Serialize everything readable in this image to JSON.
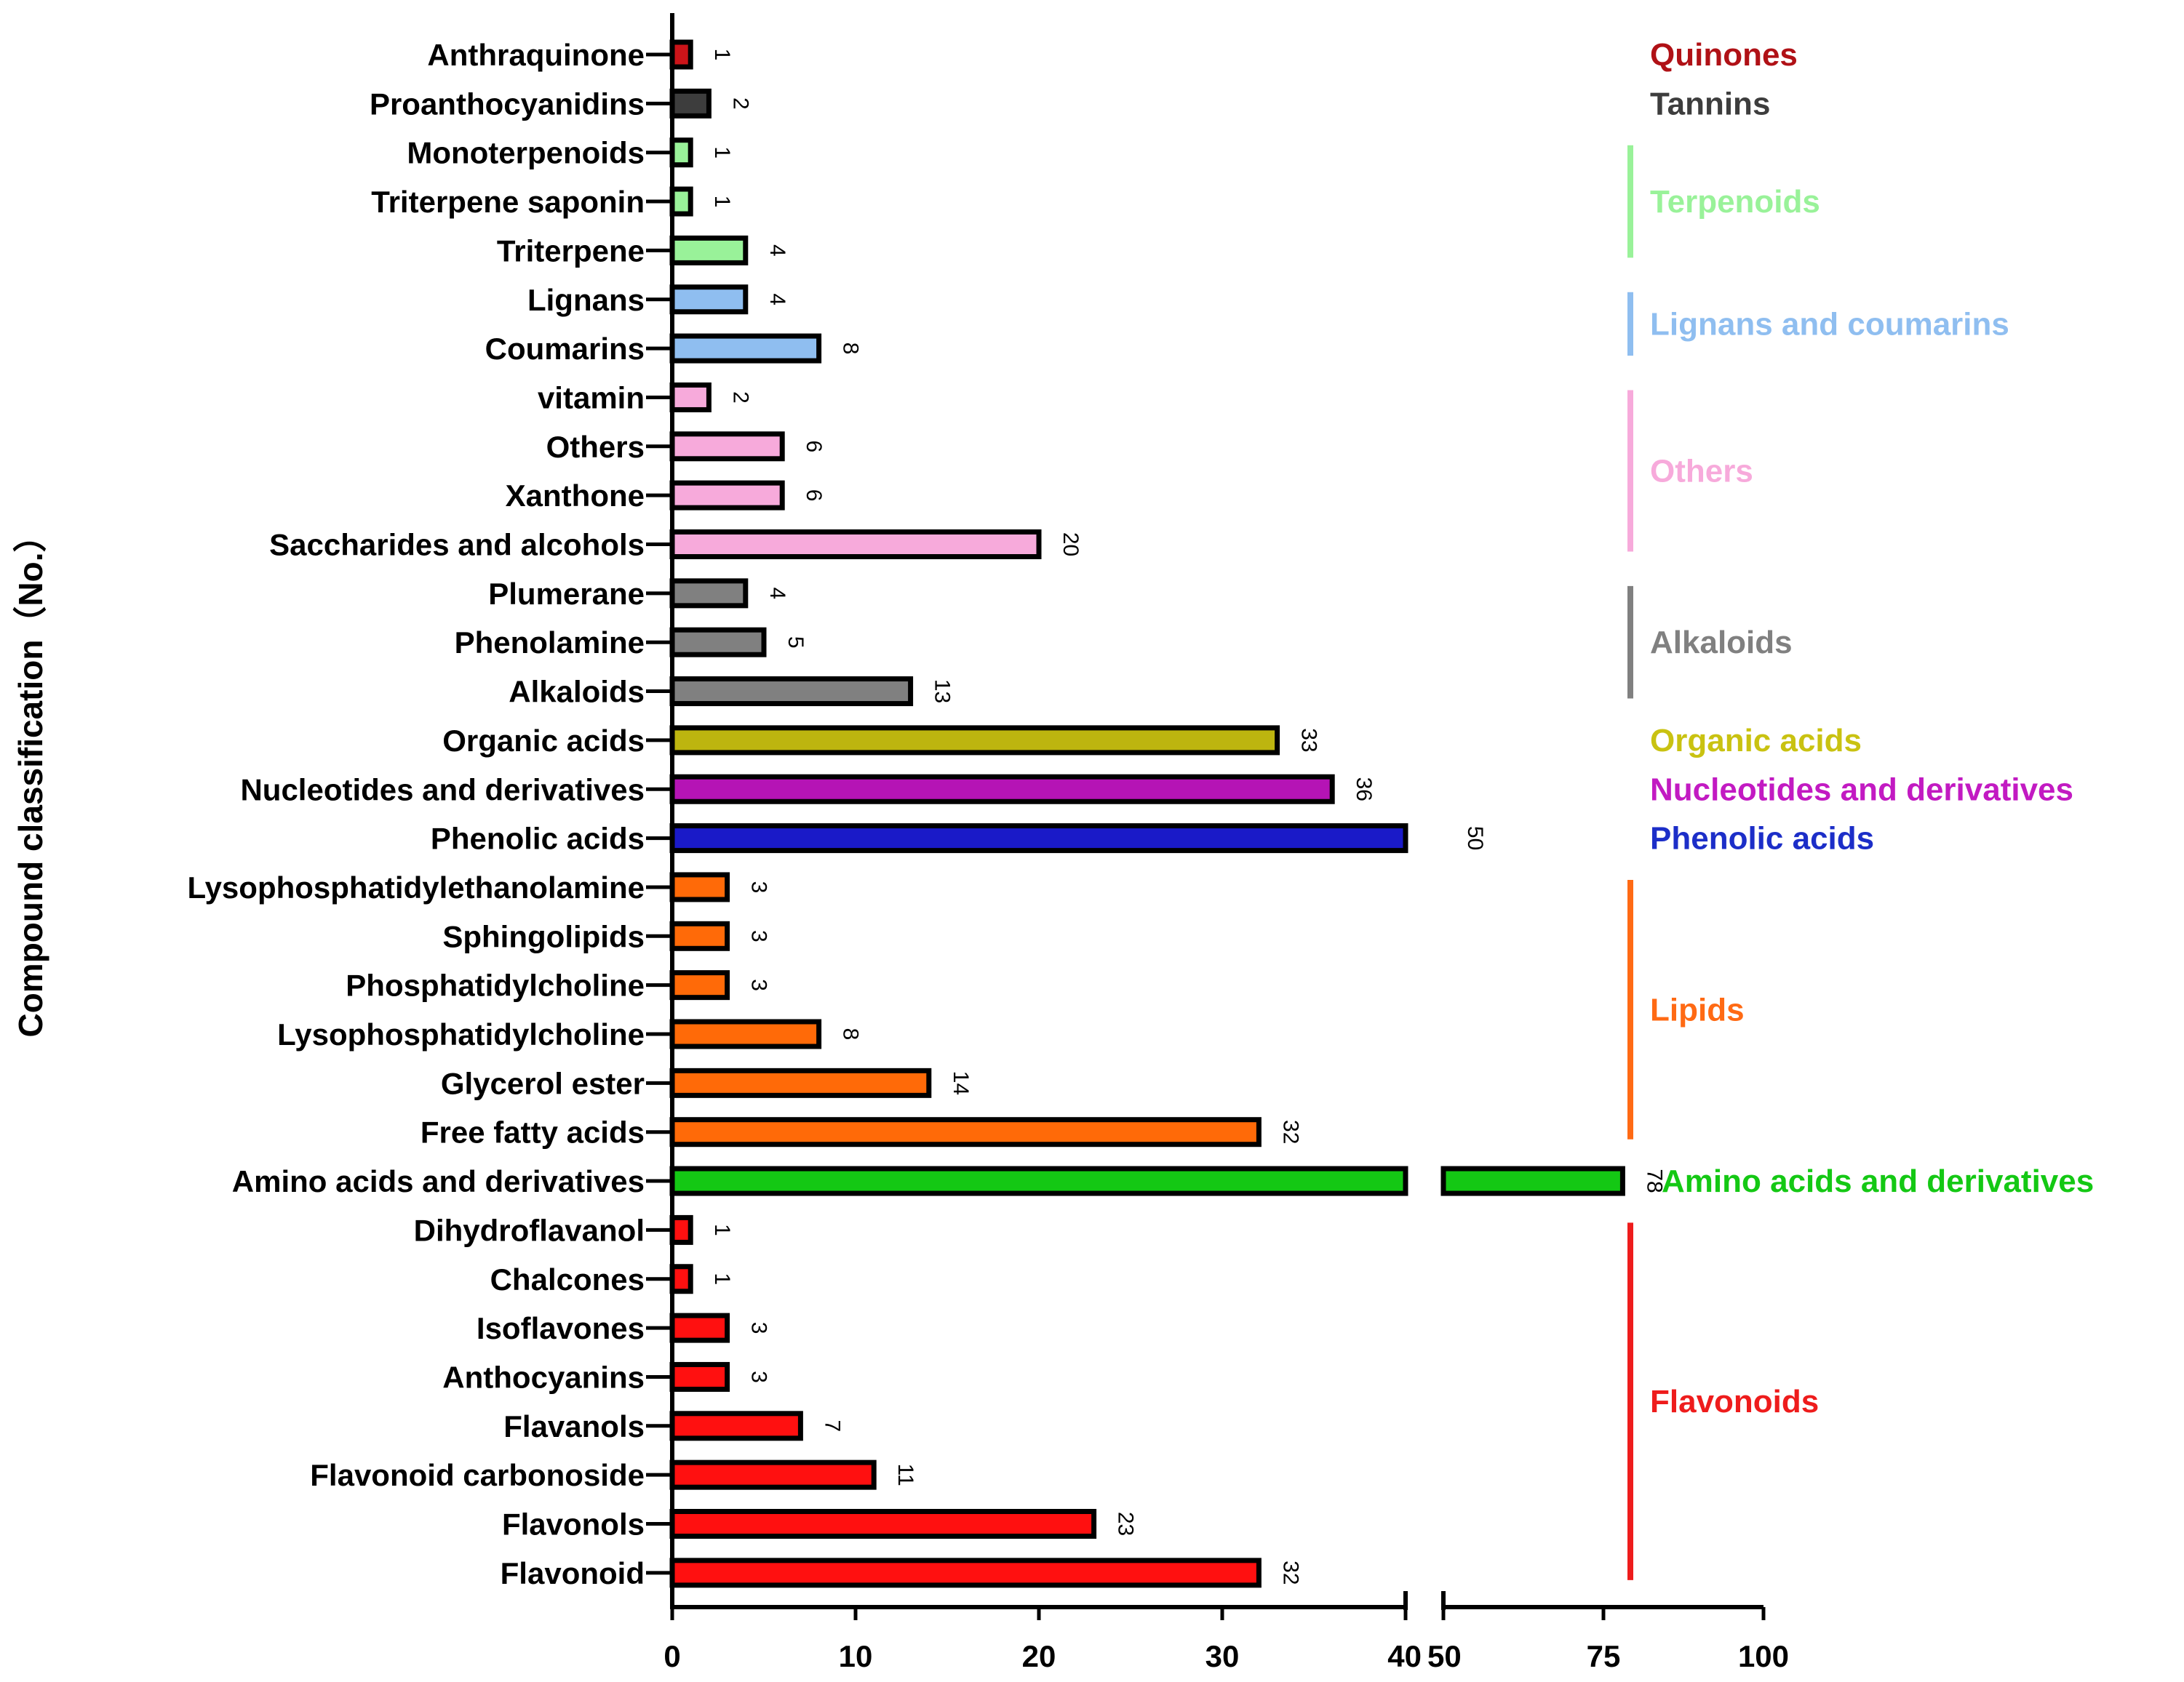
{
  "chart_data": {
    "type": "bar",
    "orientation": "horizontal",
    "ylabel": "Compound classification（No.）",
    "xlabel": "",
    "xlim": [
      0,
      100
    ],
    "x_axis_break": [
      40,
      50
    ],
    "x_segments": [
      {
        "range": [
          0,
          40
        ],
        "ticks": [
          0,
          10,
          20,
          30,
          40
        ]
      },
      {
        "range": [
          50,
          100
        ],
        "ticks": [
          50,
          75,
          100
        ]
      }
    ],
    "categories": [
      "Anthraquinone",
      "Proanthocyanidins",
      "Monoterpenoids",
      "Triterpene saponin",
      "Triterpene",
      "Lignans",
      "Coumarins",
      "vitamin",
      "Others",
      "Xanthone",
      "Saccharides and alcohols",
      "Plumerane",
      "Phenolamine",
      "Alkaloids",
      "Organic acids",
      "Nucleotides and derivatives",
      "Phenolic acids",
      "Lysophosphatidylethanolamine",
      "Sphingolipids",
      "Phosphatidylcholine",
      "Lysophosphatidylcholine",
      "Glycerol ester",
      "Free fatty acids",
      "Amino acids and derivatives",
      "Dihydroflavanol",
      "Chalcones",
      "Isoflavones",
      "Anthocyanins",
      "Flavanols",
      "Flavonoid carbonoside",
      "Flavonols",
      "Flavonoid"
    ],
    "values": [
      1,
      2,
      1,
      1,
      4,
      4,
      8,
      2,
      6,
      6,
      20,
      4,
      5,
      13,
      33,
      36,
      50,
      3,
      3,
      3,
      8,
      14,
      32,
      78,
      1,
      1,
      3,
      3,
      7,
      11,
      23,
      32
    ],
    "value_labels": [
      "1",
      "2",
      "1",
      "1",
      "4",
      "4",
      "8",
      "2",
      "6",
      "6",
      "20",
      "4",
      "5",
      "13",
      "33",
      "36",
      "50",
      "3",
      "3",
      "3",
      "8",
      "14",
      "32",
      "78",
      "1",
      "1",
      "3",
      "3",
      "7",
      "11",
      "23",
      "32"
    ],
    "group_of": [
      "Quinones",
      "Tannins",
      "Terpenoids",
      "Terpenoids",
      "Terpenoids",
      "Lignans and coumarins",
      "Lignans and coumarins",
      "Others",
      "Others",
      "Others",
      "Others",
      "Alkaloids",
      "Alkaloids",
      "Alkaloids",
      "Organic acids",
      "Nucleotides and derivatives",
      "Phenolic acids",
      "Lipids",
      "Lipids",
      "Lipids",
      "Lipids",
      "Lipids",
      "Lipids",
      "Amino acids and derivatives",
      "Flavonoids",
      "Flavonoids",
      "Flavonoids",
      "Flavonoids",
      "Flavonoids",
      "Flavonoids",
      "Flavonoids",
      "Flavonoids"
    ],
    "groups": [
      {
        "name": "Quinones",
        "color": "#b01116",
        "bar_color": "#cc1419",
        "start": 0,
        "end": 0,
        "line": false
      },
      {
        "name": "Tannins",
        "color": "#3d3d3d",
        "bar_color": "#3d3d3d",
        "start": 1,
        "end": 1,
        "line": false
      },
      {
        "name": "Terpenoids",
        "color": "#99f299",
        "bar_color": "#99f299",
        "start": 2,
        "end": 4,
        "line": true
      },
      {
        "name": "Lignans and coumarins",
        "color": "#8fbef0",
        "bar_color": "#8fbef0",
        "start": 5,
        "end": 6,
        "line": true
      },
      {
        "name": "Others",
        "color": "#f7aadb",
        "bar_color": "#f7aadb",
        "start": 7,
        "end": 10,
        "line": true
      },
      {
        "name": "Alkaloids",
        "color": "#808080",
        "bar_color": "#808080",
        "start": 11,
        "end": 13,
        "line": true
      },
      {
        "name": "Organic acids",
        "color": "#c9c211",
        "bar_color": "#bdb50f",
        "start": 14,
        "end": 14,
        "line": false
      },
      {
        "name": "Nucleotides and derivatives",
        "color": "#c21ac2",
        "bar_color": "#b514b5",
        "start": 15,
        "end": 15,
        "line": false
      },
      {
        "name": "Phenolic acids",
        "color": "#1c2ec8",
        "bar_color": "#1a1ac8",
        "start": 16,
        "end": 16,
        "line": false
      },
      {
        "name": "Lipids",
        "color": "#ff6a14",
        "bar_color": "#ff6a08",
        "start": 17,
        "end": 22,
        "line": true
      },
      {
        "name": "Amino acids and derivatives",
        "color": "#14c814",
        "bar_color": "#14c814",
        "start": 23,
        "end": 23,
        "line": false
      },
      {
        "name": "Flavonoids",
        "color": "#ee1c1c",
        "bar_color": "#ff1010",
        "start": 24,
        "end": 31,
        "line": true
      }
    ],
    "grid": false,
    "legend": "right-side group labels"
  }
}
